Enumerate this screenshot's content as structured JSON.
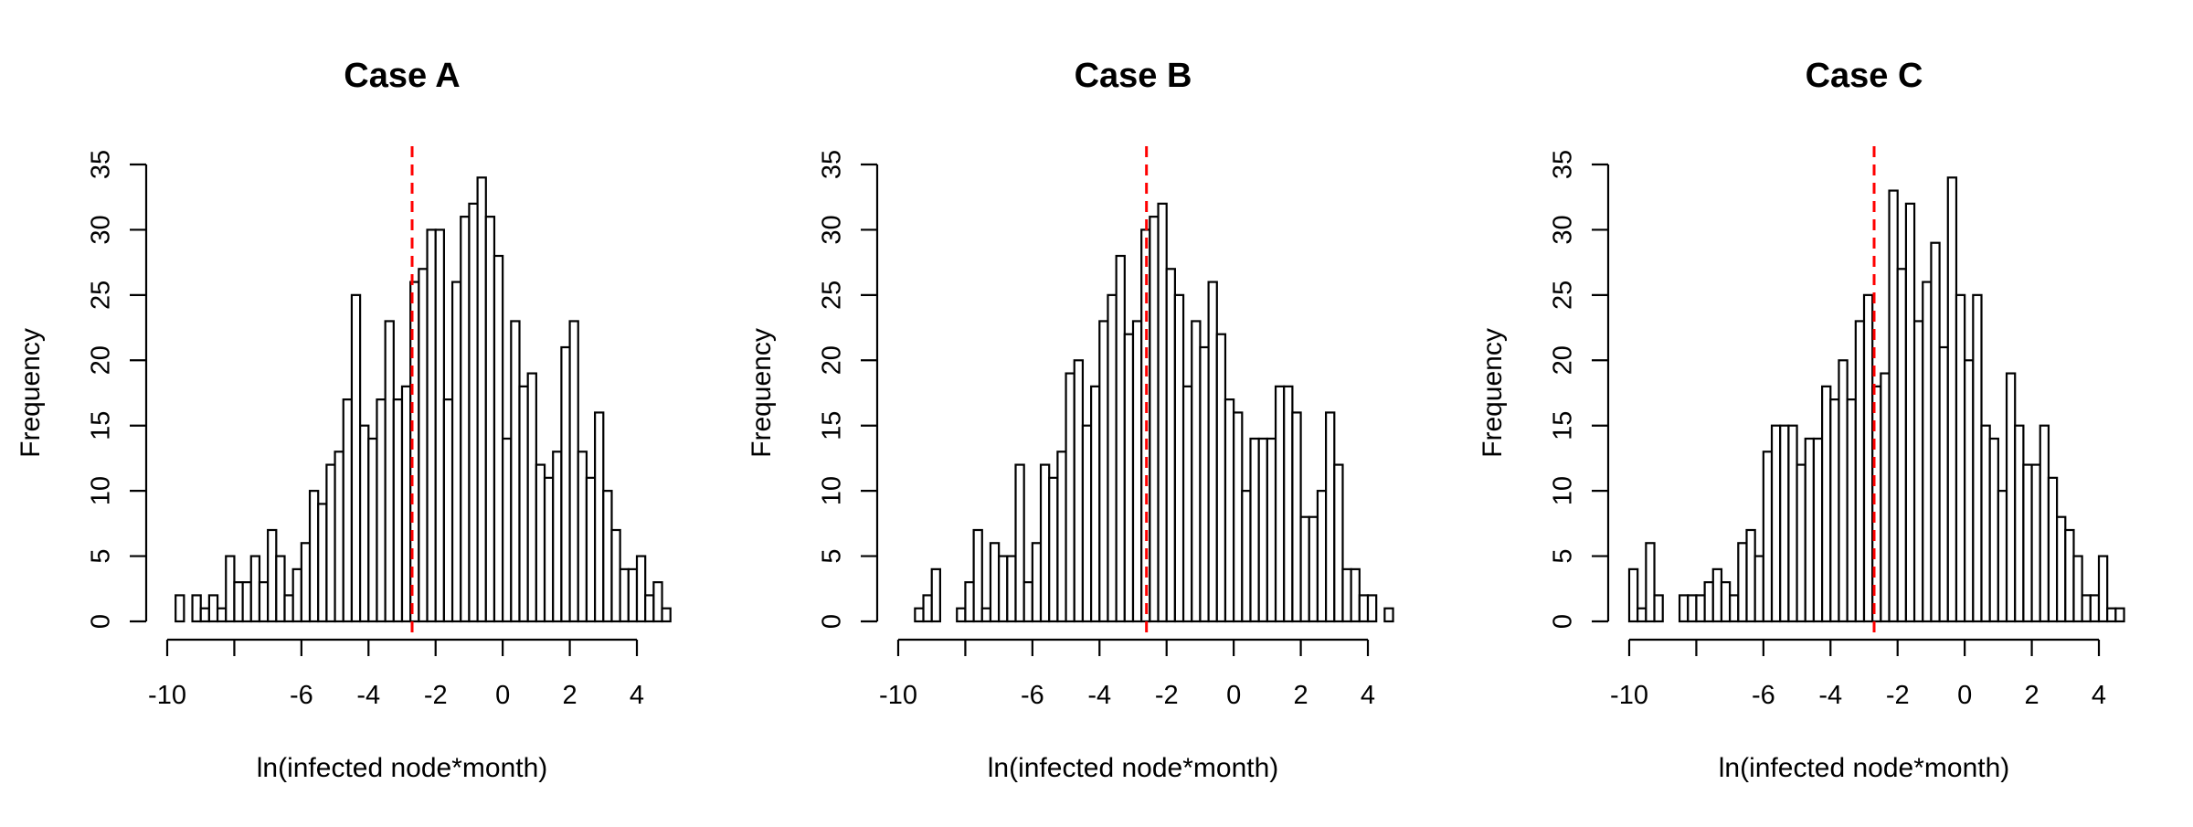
{
  "chart_data": [
    {
      "type": "bar",
      "title": "Case A",
      "xlabel": "ln(infected node*month)",
      "ylabel": "Frequency",
      "xlim": [
        -10,
        4
      ],
      "ylim": [
        0,
        35
      ],
      "xticks": [
        -10,
        -6,
        -4,
        -2,
        0,
        2,
        4
      ],
      "yticks": [
        0,
        5,
        10,
        15,
        20,
        25,
        30,
        35
      ],
      "bin_start": -9.75,
      "bin_width": 0.25,
      "values": [
        2,
        0,
        2,
        1,
        2,
        1,
        5,
        3,
        3,
        5,
        3,
        7,
        5,
        2,
        4,
        6,
        10,
        9,
        12,
        13,
        17,
        25,
        15,
        14,
        17,
        23,
        17,
        18,
        26,
        27,
        30,
        30,
        17,
        26,
        31,
        32,
        34,
        31,
        28,
        14,
        23,
        18,
        19,
        12,
        11,
        13,
        21,
        23,
        13,
        11,
        16,
        10,
        7,
        4,
        4,
        5,
        2,
        3,
        1
      ],
      "reference_line": {
        "x": -2.7,
        "color": "#ff0000",
        "style": "dashed"
      }
    },
    {
      "type": "bar",
      "title": "Case B",
      "xlabel": "ln(infected node*month)",
      "ylabel": "Frequency",
      "xlim": [
        -10,
        4
      ],
      "ylim": [
        0,
        35
      ],
      "xticks": [
        -10,
        -6,
        -4,
        -2,
        0,
        2,
        4
      ],
      "yticks": [
        0,
        5,
        10,
        15,
        20,
        25,
        30,
        35
      ],
      "bin_start": -9.5,
      "bin_width": 0.25,
      "values": [
        1,
        2,
        4,
        0,
        0,
        1,
        3,
        7,
        1,
        6,
        5,
        5,
        12,
        3,
        6,
        12,
        11,
        13,
        19,
        20,
        15,
        18,
        23,
        25,
        28,
        22,
        23,
        30,
        31,
        32,
        27,
        25,
        18,
        23,
        21,
        26,
        22,
        17,
        16,
        10,
        14,
        14,
        14,
        18,
        18,
        16,
        8,
        8,
        10,
        16,
        12,
        4,
        4,
        2,
        2,
        0,
        1
      ],
      "reference_line": {
        "x": -2.6,
        "color": "#ff0000",
        "style": "dashed"
      }
    },
    {
      "type": "bar",
      "title": "Case C",
      "xlabel": "ln(infected node*month)",
      "ylabel": "Frequency",
      "xlim": [
        -10,
        4
      ],
      "ylim": [
        0,
        35
      ],
      "xticks": [
        -10,
        -6,
        -4,
        -2,
        0,
        2,
        4
      ],
      "yticks": [
        0,
        5,
        10,
        15,
        20,
        25,
        30,
        35
      ],
      "bin_start": -10.0,
      "bin_width": 0.25,
      "values": [
        4,
        1,
        6,
        2,
        0,
        0,
        2,
        2,
        2,
        3,
        4,
        3,
        2,
        6,
        7,
        5,
        13,
        15,
        15,
        15,
        12,
        14,
        14,
        18,
        17,
        20,
        17,
        23,
        25,
        18,
        19,
        33,
        27,
        32,
        23,
        26,
        29,
        21,
        34,
        25,
        20,
        25,
        15,
        14,
        10,
        19,
        15,
        12,
        12,
        15,
        11,
        8,
        7,
        5,
        2,
        2,
        5,
        1,
        1
      ],
      "reference_line": {
        "x": -2.7,
        "color": "#ff0000",
        "style": "dashed"
      }
    }
  ]
}
